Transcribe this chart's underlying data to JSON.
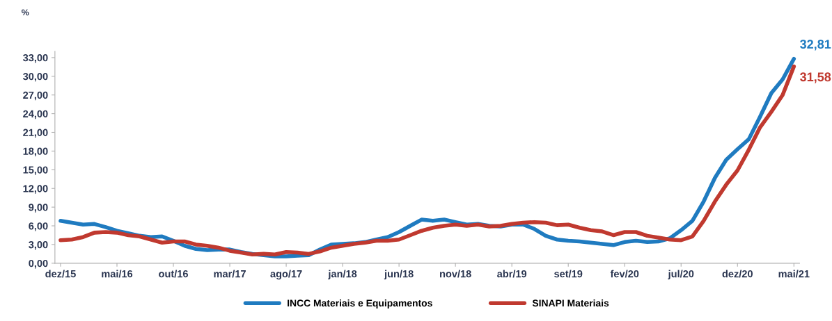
{
  "chart_data": {
    "type": "line",
    "ylabel": "%",
    "categories": [
      "dez/15",
      null,
      null,
      null,
      null,
      "mai/16",
      null,
      null,
      null,
      null,
      "out/16",
      null,
      null,
      null,
      null,
      "mar/17",
      null,
      null,
      null,
      null,
      "ago/17",
      null,
      null,
      null,
      null,
      "jan/18",
      null,
      null,
      null,
      null,
      "jun/18",
      null,
      null,
      null,
      null,
      "nov/18",
      null,
      null,
      null,
      null,
      "abr/19",
      null,
      null,
      null,
      null,
      "set/19",
      null,
      null,
      null,
      null,
      "fev/20",
      null,
      null,
      null,
      null,
      "jul/20",
      null,
      null,
      null,
      null,
      "dez/20",
      null,
      null,
      null,
      null,
      "mai/21"
    ],
    "series": [
      {
        "name": "INCC Materiais e Equipamentos",
        "color": "#1f7bc0",
        "values": [
          6.8,
          6.5,
          6.2,
          6.3,
          5.8,
          5.2,
          4.8,
          4.4,
          4.2,
          4.3,
          3.6,
          2.8,
          2.3,
          2.1,
          2.2,
          2.2,
          1.8,
          1.5,
          1.3,
          1.1,
          1.1,
          1.2,
          1.3,
          2.2,
          3.0,
          3.1,
          3.2,
          3.4,
          3.8,
          4.2,
          5.0,
          6.0,
          7.0,
          6.8,
          7.0,
          6.6,
          6.2,
          6.3,
          6.0,
          5.9,
          6.2,
          6.2,
          5.5,
          4.4,
          3.8,
          3.6,
          3.5,
          3.3,
          3.1,
          2.9,
          3.4,
          3.6,
          3.4,
          3.5,
          4.0,
          5.3,
          6.8,
          9.9,
          13.7,
          16.6,
          18.3,
          19.9,
          23.5,
          27.3,
          29.5,
          32.81
        ],
        "value_labels": [
          null,
          null,
          null,
          null,
          null,
          null,
          null,
          null,
          null,
          null,
          null,
          null,
          null,
          null,
          null,
          null,
          null,
          null,
          null,
          null,
          null,
          null,
          null,
          null,
          null,
          null,
          null,
          null,
          null,
          null,
          null,
          null,
          null,
          null,
          null,
          null,
          null,
          null,
          null,
          null,
          null,
          null,
          null,
          null,
          null,
          null,
          null,
          null,
          null,
          null,
          null,
          null,
          null,
          null,
          null,
          null,
          null,
          null,
          null,
          null,
          null,
          null,
          null,
          null,
          null,
          "32,81"
        ]
      },
      {
        "name": "SINAPI Materiais",
        "color": "#c0392f",
        "values": [
          3.7,
          3.8,
          4.2,
          4.9,
          5.0,
          4.9,
          4.5,
          4.3,
          3.8,
          3.3,
          3.5,
          3.5,
          3.0,
          2.8,
          2.5,
          2.0,
          1.7,
          1.4,
          1.5,
          1.4,
          1.8,
          1.7,
          1.5,
          1.9,
          2.5,
          2.8,
          3.1,
          3.3,
          3.6,
          3.6,
          3.8,
          4.5,
          5.2,
          5.7,
          6.0,
          6.2,
          6.0,
          6.2,
          5.9,
          6.0,
          6.3,
          6.5,
          6.6,
          6.5,
          6.1,
          6.2,
          5.7,
          5.3,
          5.1,
          4.5,
          5.0,
          5.0,
          4.4,
          4.1,
          3.8,
          3.7,
          4.3,
          6.8,
          9.9,
          12.6,
          14.9,
          18.2,
          21.8,
          24.3,
          27.0,
          31.58
        ],
        "value_labels": [
          null,
          null,
          null,
          null,
          null,
          null,
          null,
          null,
          null,
          null,
          null,
          null,
          null,
          null,
          null,
          null,
          null,
          null,
          null,
          null,
          null,
          null,
          null,
          null,
          null,
          null,
          null,
          null,
          null,
          null,
          null,
          null,
          null,
          null,
          null,
          null,
          null,
          null,
          null,
          null,
          null,
          null,
          null,
          null,
          null,
          null,
          null,
          null,
          null,
          null,
          null,
          null,
          null,
          null,
          null,
          null,
          null,
          null,
          null,
          null,
          null,
          null,
          null,
          null,
          null,
          "31,58"
        ]
      }
    ],
    "ylim": [
      0,
      34
    ],
    "yticks": [
      {
        "value": 0,
        "label": "0,00"
      },
      {
        "value": 3,
        "label": "3,00"
      },
      {
        "value": 6,
        "label": "6,00"
      },
      {
        "value": 9,
        "label": "9,00"
      },
      {
        "value": 12,
        "label": "12,00"
      },
      {
        "value": 15,
        "label": "15,00"
      },
      {
        "value": 18,
        "label": "18,00"
      },
      {
        "value": 21,
        "label": "21,00"
      },
      {
        "value": 24,
        "label": "24,00"
      },
      {
        "value": 27,
        "label": "27,00"
      },
      {
        "value": 30,
        "label": "30,00"
      },
      {
        "value": 33,
        "label": "33,00"
      }
    ],
    "grid": false,
    "legend": "bottom",
    "marker": "none",
    "line_style": "solid"
  }
}
